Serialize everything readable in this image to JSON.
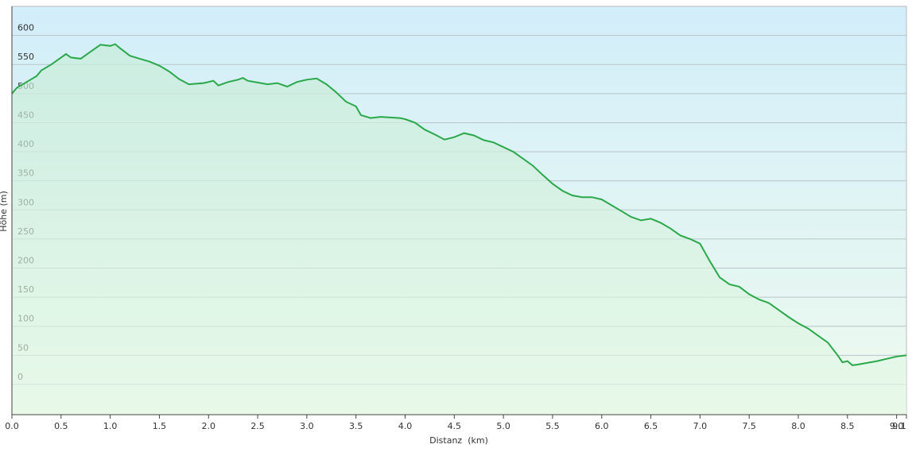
{
  "chart_data": {
    "type": "area",
    "xlabel": "Distanz  (km)",
    "ylabel": "Höhe (m)",
    "xlim": [
      0,
      9.1
    ],
    "ylim": [
      -52,
      650
    ],
    "xticks": [
      {
        "value": 0,
        "label": "0.0"
      },
      {
        "value": 0.5,
        "label": "0.5"
      },
      {
        "value": 1,
        "label": "1.0"
      },
      {
        "value": 1.5,
        "label": "1.5"
      },
      {
        "value": 2,
        "label": "2.0"
      },
      {
        "value": 2.5,
        "label": "2.5"
      },
      {
        "value": 3,
        "label": "3.0"
      },
      {
        "value": 3.5,
        "label": "3.5"
      },
      {
        "value": 4,
        "label": "4.0"
      },
      {
        "value": 4.5,
        "label": "4.5"
      },
      {
        "value": 5,
        "label": "5.0"
      },
      {
        "value": 5.5,
        "label": "5.5"
      },
      {
        "value": 6,
        "label": "6.0"
      },
      {
        "value": 6.5,
        "label": "6.5"
      },
      {
        "value": 7,
        "label": "7.0"
      },
      {
        "value": 7.5,
        "label": "7.5"
      },
      {
        "value": 8,
        "label": "8.0"
      },
      {
        "value": 8.5,
        "label": "8.5"
      },
      {
        "value": 9,
        "label": "9.0"
      },
      9.1
    ],
    "yticks": [
      0,
      50,
      100,
      150,
      200,
      250,
      300,
      350,
      400,
      450,
      500,
      550,
      600
    ],
    "grid": true,
    "color": "#2aa84a",
    "x": [
      0,
      0.05,
      0.15,
      0.25,
      0.3,
      0.4,
      0.5,
      0.55,
      0.6,
      0.7,
      0.8,
      0.9,
      1.0,
      1.05,
      1.1,
      1.2,
      1.3,
      1.4,
      1.5,
      1.6,
      1.7,
      1.8,
      1.95,
      2.05,
      2.1,
      2.2,
      2.3,
      2.35,
      2.4,
      2.5,
      2.6,
      2.7,
      2.8,
      2.9,
      3.0,
      3.1,
      3.2,
      3.3,
      3.4,
      3.5,
      3.55,
      3.65,
      3.75,
      3.95,
      4.0,
      4.1,
      4.2,
      4.3,
      4.4,
      4.5,
      4.6,
      4.7,
      4.8,
      4.9,
      5.0,
      5.1,
      5.2,
      5.3,
      5.4,
      5.5,
      5.6,
      5.7,
      5.8,
      5.9,
      6.0,
      6.1,
      6.2,
      6.3,
      6.4,
      6.5,
      6.6,
      6.7,
      6.8,
      6.9,
      7.0,
      7.1,
      7.2,
      7.3,
      7.4,
      7.5,
      7.6,
      7.7,
      7.8,
      7.9,
      8.0,
      8.1,
      8.2,
      8.3,
      8.4,
      8.45,
      8.5,
      8.55,
      8.6,
      8.8,
      8.9,
      9.0,
      9.1
    ],
    "values": [
      500,
      510,
      520,
      530,
      540,
      550,
      562,
      568,
      562,
      560,
      572,
      584,
      582,
      585,
      578,
      565,
      560,
      555,
      548,
      538,
      525,
      516,
      518,
      522,
      514,
      520,
      524,
      527,
      522,
      519,
      516,
      518,
      512,
      520,
      524,
      526,
      516,
      502,
      486,
      478,
      463,
      458,
      460,
      458,
      456,
      450,
      438,
      430,
      421,
      425,
      432,
      428,
      420,
      416,
      408,
      400,
      388,
      376,
      360,
      345,
      333,
      325,
      322,
      322,
      318,
      308,
      298,
      288,
      282,
      285,
      278,
      268,
      256,
      250,
      242,
      212,
      184,
      172,
      168,
      155,
      146,
      140,
      128,
      116,
      105,
      96,
      84,
      72,
      50,
      38,
      40,
      33,
      34,
      40,
      44,
      48,
      50
    ]
  }
}
